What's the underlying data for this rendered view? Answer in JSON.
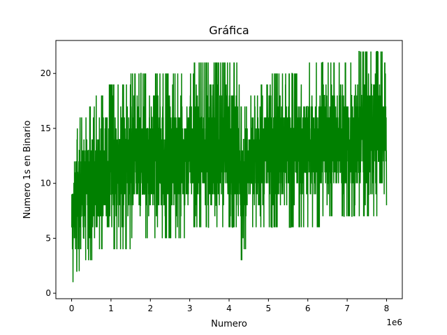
{
  "chart_data": {
    "type": "line",
    "title": "Gráfica",
    "xlabel": "Numero",
    "ylabel": "Numero 1s en Binario",
    "x_offset_label": "1e6",
    "xlim": [
      -400000,
      8400000
    ],
    "ylim": [
      -0.5,
      23.0
    ],
    "x_ticks": [
      0,
      1000000,
      2000000,
      3000000,
      4000000,
      5000000,
      6000000,
      7000000,
      8000000
    ],
    "x_tick_labels": [
      "0",
      "1",
      "2",
      "3",
      "4",
      "5",
      "6",
      "7",
      "8"
    ],
    "y_ticks": [
      0,
      5,
      10,
      15,
      20
    ],
    "y_tick_labels": [
      "0",
      "5",
      "10",
      "15",
      "20"
    ],
    "grid": false,
    "legend": "none",
    "series": [
      {
        "color": "#008000",
        "x_range": [
          1,
          8000000
        ],
        "description_values": {
          "min": 1,
          "max": 22,
          "band_low_by_x": [
            [
              0,
              1
            ],
            [
              100000,
              2
            ],
            [
              500000,
              3
            ],
            [
              1000000,
              4
            ],
            [
              2000000,
              5
            ],
            [
              4200000,
              6
            ],
            [
              4300000,
              3
            ],
            [
              4600000,
              6
            ],
            [
              8000000,
              7
            ]
          ],
          "band_high_by_x": [
            [
              0,
              11
            ],
            [
              100000,
              15
            ],
            [
              500000,
              17
            ],
            [
              1000000,
              19
            ],
            [
              2000000,
              20
            ],
            [
              4200000,
              21
            ],
            [
              4300000,
              17
            ],
            [
              5200000,
              20
            ],
            [
              7800000,
              22
            ],
            [
              8000000,
              21
            ]
          ]
        }
      }
    ]
  },
  "colors": {
    "line": "#008000",
    "axes": "#000000",
    "background": "#ffffff"
  }
}
